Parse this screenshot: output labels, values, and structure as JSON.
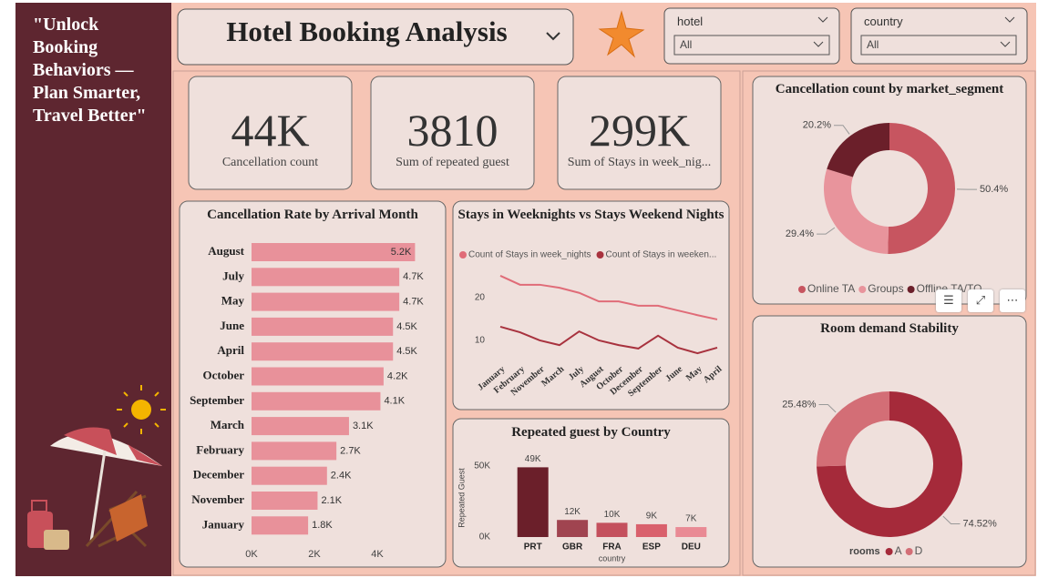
{
  "sidebar": {
    "quote": "\"Unlock Booking Behaviors — Plan Smarter, Travel Better\""
  },
  "header": {
    "title": "Hotel Booking Analysis"
  },
  "filters": [
    {
      "label": "hotel",
      "value": "All"
    },
    {
      "label": "country",
      "value": "All"
    }
  ],
  "kpis": [
    {
      "value": "44K",
      "label": "Cancellation count"
    },
    {
      "value": "3810",
      "label": "Sum of repeated guest"
    },
    {
      "value": "299K",
      "label": "Sum of Stays in week_nig..."
    }
  ],
  "chart_data": [
    {
      "type": "bar",
      "orientation": "horizontal",
      "title": "Cancellation Rate by Arrival Month",
      "categories": [
        "August",
        "July",
        "May",
        "June",
        "April",
        "October",
        "September",
        "March",
        "February",
        "December",
        "November",
        "January"
      ],
      "values": [
        5200,
        4700,
        4700,
        4500,
        4500,
        4200,
        4100,
        3100,
        2700,
        2400,
        2100,
        1800
      ],
      "value_labels": [
        "5.2K",
        "4.7K",
        "4.7K",
        "4.5K",
        "4.5K",
        "4.2K",
        "4.1K",
        "3.1K",
        "2.7K",
        "2.4K",
        "2.1K",
        "1.8K"
      ],
      "color": "#e8919a",
      "xlim": [
        0,
        6000
      ],
      "xticks": [
        {
          "value": 0,
          "label": "0K"
        },
        {
          "value": 2000,
          "label": "2K"
        },
        {
          "value": 4000,
          "label": "4K"
        }
      ]
    },
    {
      "type": "line",
      "title": "Stays in Weeknights vs Stays Weekend Nights",
      "categories": [
        "January",
        "February",
        "November",
        "March",
        "July",
        "August",
        "October",
        "December",
        "September",
        "June",
        "May",
        "April"
      ],
      "series": [
        {
          "name": "Count of Stays in week_nights",
          "color": "#e06c78",
          "values": [
            25.1,
            23.0,
            23.0,
            22.3,
            21.1,
            19.1,
            19.1,
            18.1,
            18.1,
            17.0,
            15.9,
            14.9
          ]
        },
        {
          "name": "Count of Stays in weeken...",
          "color": "#a8323e",
          "values": [
            13.2,
            11.9,
            10.0,
            8.9,
            12.1,
            10.0,
            8.9,
            8.1,
            11.1,
            8.3,
            7.0,
            8.3
          ]
        }
      ],
      "ylim": [
        5,
        27
      ],
      "yticks": [
        10,
        20
      ],
      "legend": "top"
    },
    {
      "type": "bar",
      "orientation": "vertical",
      "title": "Repeated guest by Country",
      "categories": [
        "PRT",
        "GBR",
        "FRA",
        "ESP",
        "DEU"
      ],
      "values": [
        49000,
        12000,
        10000,
        9000,
        7000
      ],
      "value_labels": [
        "49K",
        "12K",
        "10K",
        "9K",
        "7K"
      ],
      "colors": [
        "#6b1f2a",
        "#a04450",
        "#c4505d",
        "#d9606c",
        "#e98a94"
      ],
      "ylim": [
        0,
        55000
      ],
      "yticks": [
        {
          "value": 0,
          "label": "0K"
        },
        {
          "value": 50000,
          "label": "50K"
        }
      ],
      "x_label": "country",
      "y_label": "Repeated Guest"
    },
    {
      "type": "donut",
      "title": "Cancellation count by market_segment",
      "categories": [
        "Online TA",
        "Groups",
        "Offline TA/TO"
      ],
      "values": [
        50.4,
        29.4,
        20.2
      ],
      "value_labels": [
        "50.4%",
        "29.4%",
        "20.2%"
      ],
      "colors": [
        "#c75560",
        "#e8949c",
        "#6b1f2a"
      ],
      "legend": "bottom"
    },
    {
      "type": "donut",
      "title": "Room demand Stability",
      "legend_title": "rooms",
      "categories": [
        "A",
        "D"
      ],
      "values": [
        74.52,
        25.48
      ],
      "value_labels": [
        "74.52%",
        "25.48%"
      ],
      "colors": [
        "#a52a3a",
        "#d36e76"
      ],
      "legend": "bottom"
    }
  ]
}
